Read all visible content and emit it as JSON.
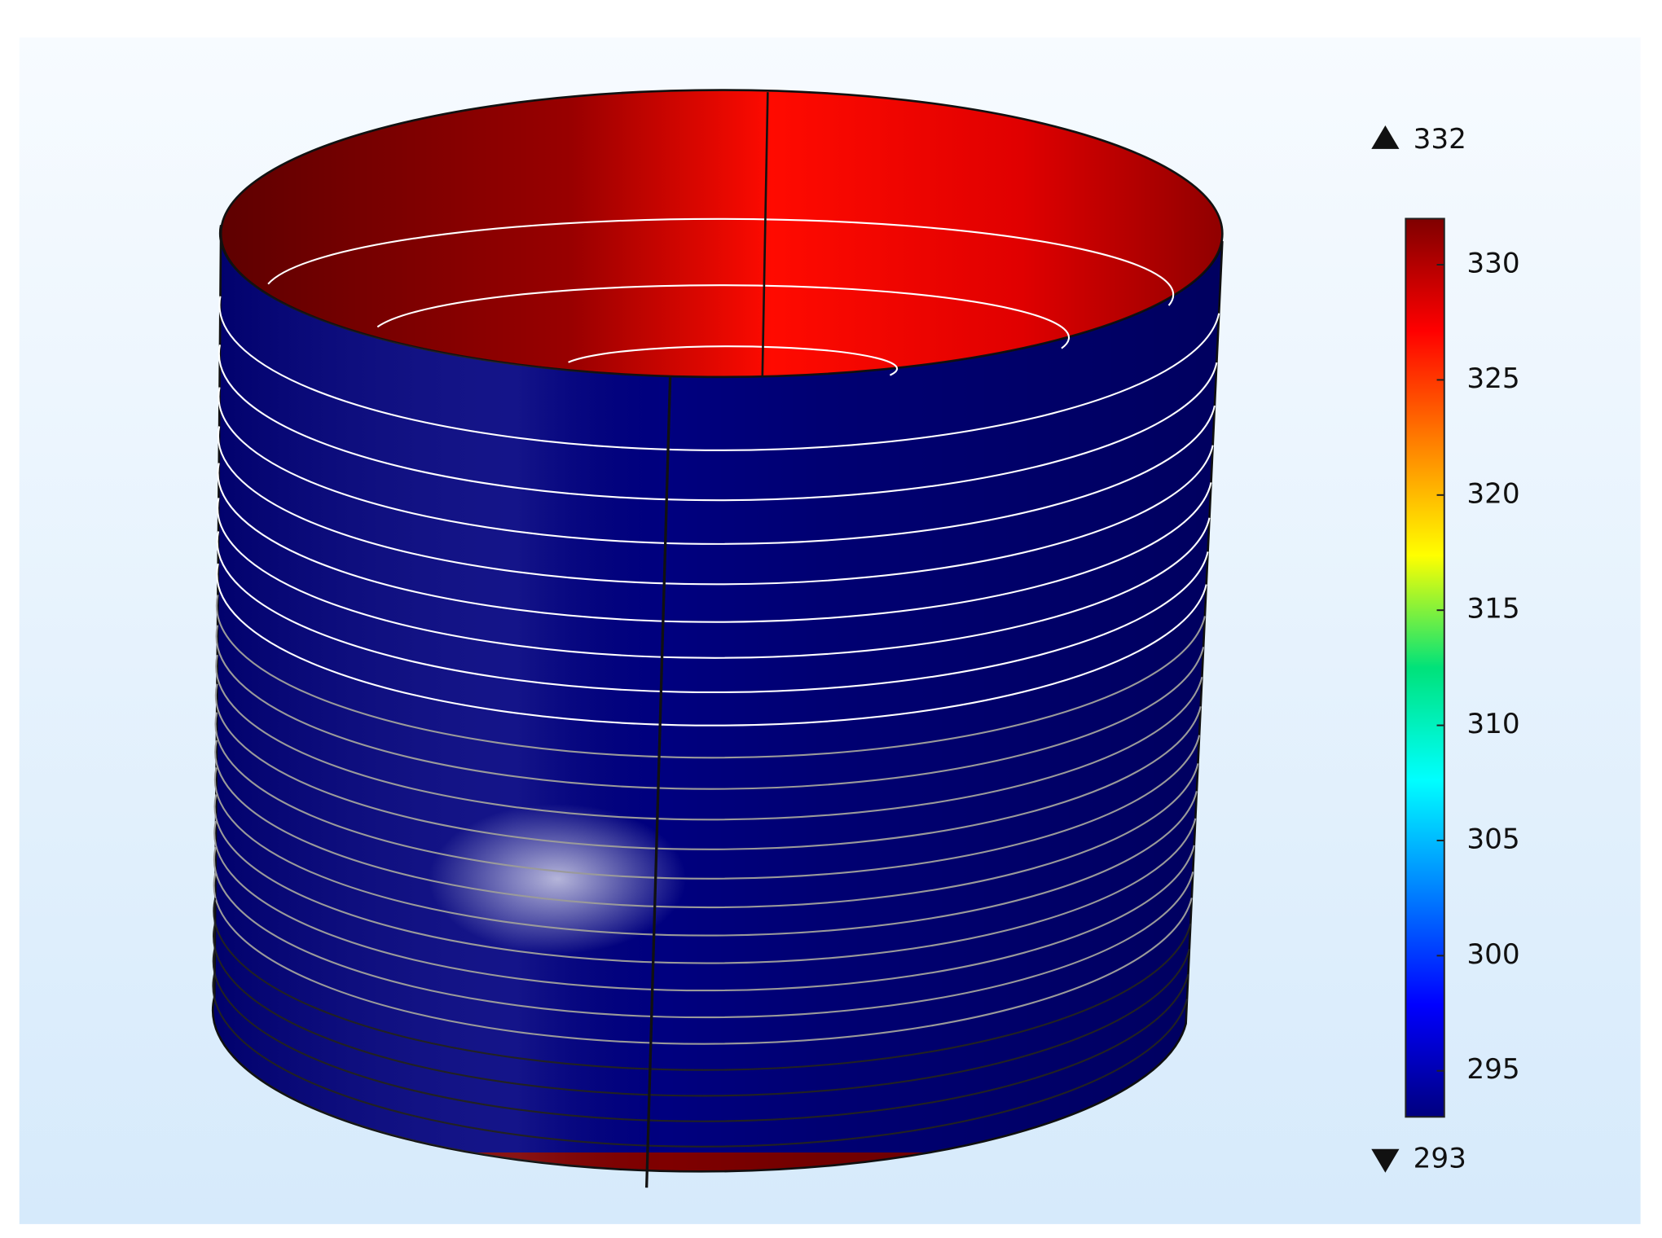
{
  "chart_data": {
    "type": "colorbar-surface",
    "clim": [
      293,
      332
    ],
    "cticks": [
      295,
      300,
      305,
      310,
      315,
      320,
      325,
      330
    ],
    "colormap": [
      "#00007f",
      "#0000ff",
      "#0080ff",
      "#00ffff",
      "#00e27a",
      "#ffff00",
      "#ff8000",
      "#ff0000",
      "#7f0000"
    ]
  }
}
